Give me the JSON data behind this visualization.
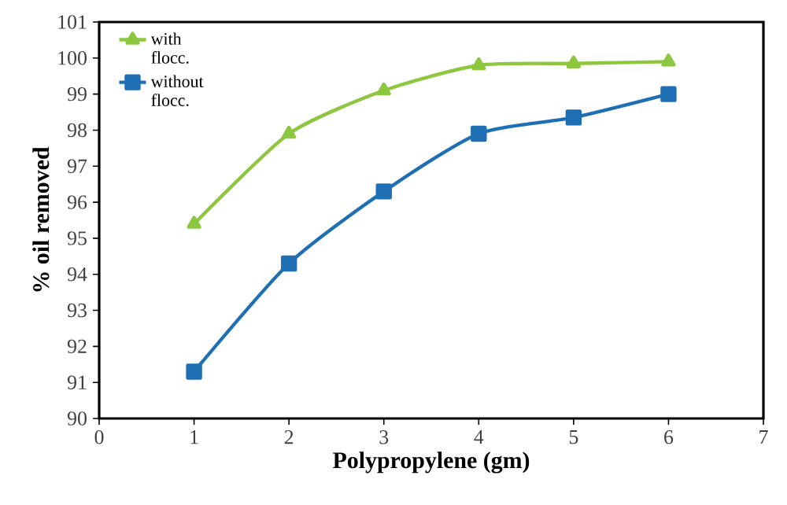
{
  "chart_data": {
    "type": "line",
    "xlabel": "Polypropylene (gm)",
    "ylabel": "% oil removed",
    "x": [
      1,
      2,
      3,
      4,
      5,
      6
    ],
    "series": [
      {
        "name": "with flocc.",
        "color": "#8dc63f",
        "marker": "triangle",
        "values": [
          95.4,
          97.9,
          99.1,
          99.8,
          99.85,
          99.9
        ]
      },
      {
        "name": "without flocc.",
        "color": "#1f6fb5",
        "marker": "square",
        "values": [
          91.3,
          94.3,
          96.3,
          97.9,
          98.35,
          99.0
        ]
      }
    ],
    "xlim": [
      0,
      7
    ],
    "xticks": [
      0,
      1,
      2,
      3,
      4,
      5,
      6,
      7
    ],
    "ylim": [
      90,
      101
    ],
    "yticks": [
      90,
      91,
      92,
      93,
      94,
      95,
      96,
      97,
      98,
      99,
      100,
      101
    ],
    "grid": false,
    "legend": "top left",
    "line_style": "solid"
  }
}
